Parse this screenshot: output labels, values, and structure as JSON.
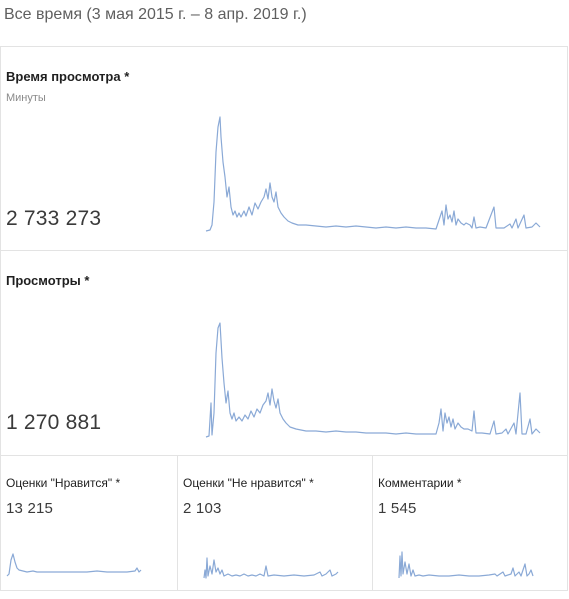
{
  "date_range": "Все время (3 мая 2015 г. – 8 апр. 2019 г.)",
  "cards": [
    {
      "title": "Время просмотра *",
      "subtitle": "Минуты",
      "value": "2 733 273"
    },
    {
      "title": "Просмотры *",
      "subtitle": "",
      "value": "1 270 881"
    },
    {
      "title": "Оценки \"Нравится\" *",
      "value": "13 215"
    },
    {
      "title": "Оценки \"Не нравится\" *",
      "value": "2 103"
    },
    {
      "title": "Комментарии *",
      "value": "1 545"
    }
  ],
  "colors": {
    "sparkline": "#8aa9d6",
    "border": "#e3e3e3"
  }
}
